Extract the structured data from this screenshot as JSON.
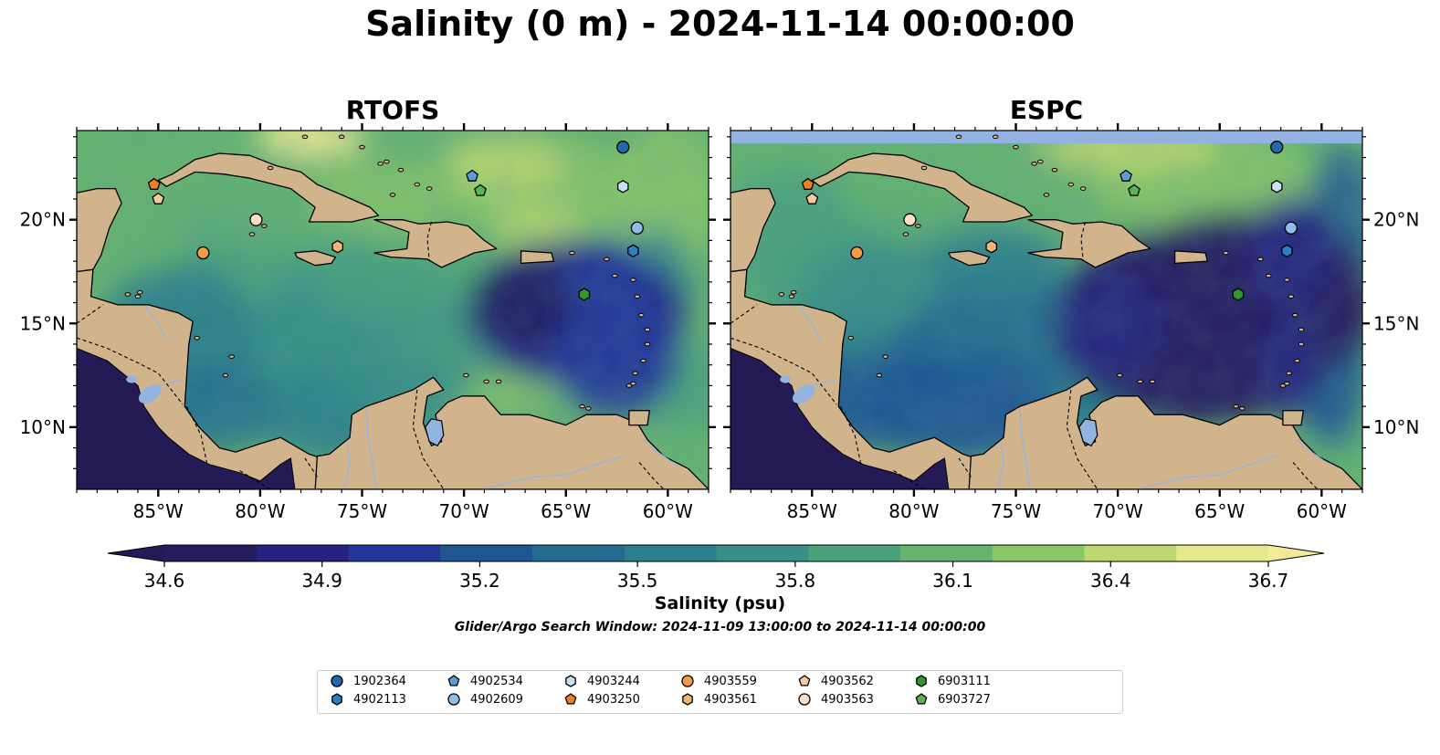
{
  "title": "Salinity (0 m) - 2024-11-14 00:00:00",
  "panels": [
    {
      "title": "RTOFS"
    },
    {
      "title": "ESPC"
    }
  ],
  "axes": {
    "lon_ticks": [
      "85°W",
      "80°W",
      "75°W",
      "70°W",
      "65°W",
      "60°W"
    ],
    "lat_ticks": [
      "20°N",
      "15°N",
      "10°N"
    ],
    "lon_range": [
      -89,
      -58
    ],
    "lat_range": [
      7,
      24.3
    ]
  },
  "colorbar": {
    "label": "Salinity (psu)",
    "ticks": [
      "34.6",
      "34.9",
      "35.2",
      "35.5",
      "35.8",
      "36.1",
      "36.4",
      "36.7"
    ],
    "range": [
      34.6,
      36.7
    ],
    "colormap": [
      "#251c5e",
      "#262282",
      "#223799",
      "#1f5691",
      "#236c8f",
      "#2b7f8a",
      "#378f86",
      "#4aa27b",
      "#66b46d",
      "#8ac766",
      "#bcd86f",
      "#e7e88e"
    ],
    "extend": "both",
    "over_color": "#f1ea98",
    "under_color": "#241a55"
  },
  "search_window": "Glider/Argo Search Window: 2024-11-09 13:00:00 to 2024-11-14 00:00:00",
  "colors": {
    "land": "#d2b48c",
    "lake": "#93b4e0",
    "river": "#9bb4d6",
    "missing": "#92b3e2"
  },
  "legend": [
    {
      "id": "1902364",
      "marker": "circle",
      "color": "#1f6aad"
    },
    {
      "id": "4902113",
      "marker": "hexagon",
      "color": "#2d7fc4"
    },
    {
      "id": "4902534",
      "marker": "pentagon",
      "color": "#5b9cd6"
    },
    {
      "id": "4902609",
      "marker": "circle",
      "color": "#8fbde6"
    },
    {
      "id": "4903244",
      "marker": "hexagon",
      "color": "#c6e2f5"
    },
    {
      "id": "4903250",
      "marker": "pentagon",
      "color": "#f07f1f"
    },
    {
      "id": "4903559",
      "marker": "circle",
      "color": "#f59a45"
    },
    {
      "id": "4903561",
      "marker": "hexagon",
      "color": "#f7b274"
    },
    {
      "id": "4903562",
      "marker": "pentagon",
      "color": "#f8c99b"
    },
    {
      "id": "4903563",
      "marker": "circle",
      "color": "#fde0c4"
    },
    {
      "id": "6903111",
      "marker": "hexagon",
      "color": "#2e9a2e"
    },
    {
      "id": "6903727",
      "marker": "pentagon",
      "color": "#56b356"
    }
  ],
  "floats": [
    {
      "id": "1902364",
      "lon": -62.2,
      "lat": 23.5
    },
    {
      "id": "4903244",
      "lon": -62.2,
      "lat": 21.6
    },
    {
      "id": "4902609",
      "lon": -61.5,
      "lat": 19.6
    },
    {
      "id": "4902113",
      "lon": -61.7,
      "lat": 18.5
    },
    {
      "id": "4902534",
      "lon": -69.6,
      "lat": 22.1
    },
    {
      "id": "6903727",
      "lon": -69.2,
      "lat": 21.4
    },
    {
      "id": "4903250",
      "lon": -85.2,
      "lat": 21.7
    },
    {
      "id": "4903562",
      "lon": -85.0,
      "lat": 21.0
    },
    {
      "id": "4903563",
      "lon": -80.2,
      "lat": 20.0
    },
    {
      "id": "4903559",
      "lon": -82.8,
      "lat": 18.4
    },
    {
      "id": "4903561",
      "lon": -76.2,
      "lat": 18.7
    },
    {
      "id": "6903111",
      "lon": -64.1,
      "lat": 16.4
    }
  ]
}
